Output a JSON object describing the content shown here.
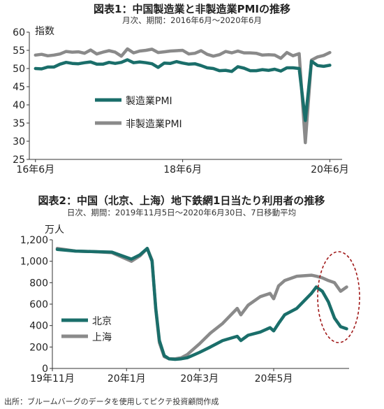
{
  "chart_data": [
    {
      "type": "line",
      "title": "図表1：中国製造業と非製造業PMIの推移",
      "subtitle": "月次、期間：2016年6月～2020年6月",
      "ylabel": "指数",
      "ylim": [
        25,
        60
      ],
      "yticks": [
        "25",
        "30",
        "35",
        "40",
        "45",
        "50",
        "55",
        "60"
      ],
      "xticks": [
        "16年6月",
        "18年6月",
        "20年6月"
      ],
      "grid": false,
      "legend_position": "center",
      "x": [
        "2016-06",
        "2016-07",
        "2016-08",
        "2016-09",
        "2016-10",
        "2016-11",
        "2016-12",
        "2017-01",
        "2017-02",
        "2017-03",
        "2017-04",
        "2017-05",
        "2017-06",
        "2017-07",
        "2017-08",
        "2017-09",
        "2017-10",
        "2017-11",
        "2017-12",
        "2018-01",
        "2018-02",
        "2018-03",
        "2018-04",
        "2018-05",
        "2018-06",
        "2018-07",
        "2018-08",
        "2018-09",
        "2018-10",
        "2018-11",
        "2018-12",
        "2019-01",
        "2019-02",
        "2019-03",
        "2019-04",
        "2019-05",
        "2019-06",
        "2019-07",
        "2019-08",
        "2019-09",
        "2019-10",
        "2019-11",
        "2019-12",
        "2020-01",
        "2020-02",
        "2020-03",
        "2020-04",
        "2020-05",
        "2020-06"
      ],
      "series": [
        {
          "name": "製造業PMI",
          "color": "#1a6e6a",
          "values": [
            50.0,
            49.9,
            50.4,
            50.4,
            51.2,
            51.7,
            51.4,
            51.3,
            51.6,
            51.8,
            51.2,
            51.2,
            51.7,
            51.4,
            51.7,
            52.4,
            51.6,
            51.8,
            51.6,
            51.3,
            50.3,
            51.5,
            51.4,
            51.9,
            51.5,
            51.2,
            51.3,
            50.8,
            50.2,
            50.0,
            49.4,
            49.5,
            49.2,
            50.5,
            50.1,
            49.4,
            49.4,
            49.7,
            49.5,
            49.8,
            49.3,
            50.2,
            50.2,
            50.0,
            35.7,
            52.0,
            50.8,
            50.6,
            50.9
          ]
        },
        {
          "name": "非製造業PMI",
          "color": "#8a8a8a",
          "values": [
            53.7,
            53.9,
            53.5,
            53.7,
            54.0,
            54.7,
            54.5,
            54.6,
            54.2,
            55.1,
            54.0,
            54.5,
            54.9,
            54.5,
            53.4,
            55.4,
            54.3,
            54.8,
            55.0,
            55.3,
            54.4,
            54.6,
            54.8,
            54.9,
            55.0,
            54.0,
            54.2,
            54.9,
            53.9,
            53.4,
            53.8,
            54.7,
            54.3,
            54.8,
            54.3,
            54.3,
            54.2,
            53.7,
            53.8,
            53.7,
            52.8,
            54.4,
            53.5,
            54.1,
            29.6,
            52.3,
            53.2,
            53.6,
            54.4
          ]
        }
      ]
    },
    {
      "type": "line",
      "title": "図表2：中国（北京、上海）地下鉄網1日当たり利用者の推移",
      "subtitle": "日次、期間：2019年11月5日～2020年6月30日、7日移動平均",
      "ylabel": "万人",
      "ylim": [
        0,
        1200
      ],
      "yticks": [
        "0",
        "200",
        "400",
        "600",
        "800",
        "1,000",
        "1,200"
      ],
      "xticks": [
        "19年11月",
        "20年1月",
        "20年3月",
        "20年5月"
      ],
      "grid": false,
      "legend_position": "left",
      "annotation": "dashed red ellipse marking June 2020",
      "x": [
        "2019-11-05",
        "2019-11-20",
        "2019-12-05",
        "2019-12-20",
        "2020-01-05",
        "2020-01-12",
        "2020-01-18",
        "2020-01-22",
        "2020-01-25",
        "2020-01-28",
        "2020-02-01",
        "2020-02-05",
        "2020-02-10",
        "2020-02-15",
        "2020-02-20",
        "2020-03-01",
        "2020-03-10",
        "2020-03-20",
        "2020-04-01",
        "2020-04-04",
        "2020-04-10",
        "2020-04-20",
        "2020-04-28",
        "2020-05-01",
        "2020-05-05",
        "2020-05-10",
        "2020-05-20",
        "2020-06-01",
        "2020-06-05",
        "2020-06-10",
        "2020-06-15",
        "2020-06-20",
        "2020-06-25",
        "2020-06-30"
      ],
      "series": [
        {
          "name": "北京",
          "color": "#1a6e6a",
          "values": [
            1110,
            1095,
            1090,
            1085,
            1020,
            1060,
            1120,
            1000,
            560,
            260,
            120,
            90,
            85,
            90,
            100,
            150,
            200,
            260,
            300,
            260,
            310,
            340,
            380,
            350,
            420,
            500,
            560,
            700,
            760,
            720,
            620,
            470,
            390,
            370
          ]
        },
        {
          "name": "上海",
          "color": "#8a8a8a",
          "values": [
            1120,
            1095,
            1090,
            1080,
            1000,
            1050,
            1120,
            1010,
            550,
            240,
            110,
            90,
            90,
            100,
            130,
            230,
            330,
            420,
            560,
            500,
            590,
            670,
            700,
            650,
            770,
            820,
            860,
            870,
            860,
            845,
            820,
            800,
            720,
            760
          ]
        }
      ]
    }
  ],
  "source_note": "出所：ブルームバーグのデータを使用してピクテ投資顧問作成"
}
